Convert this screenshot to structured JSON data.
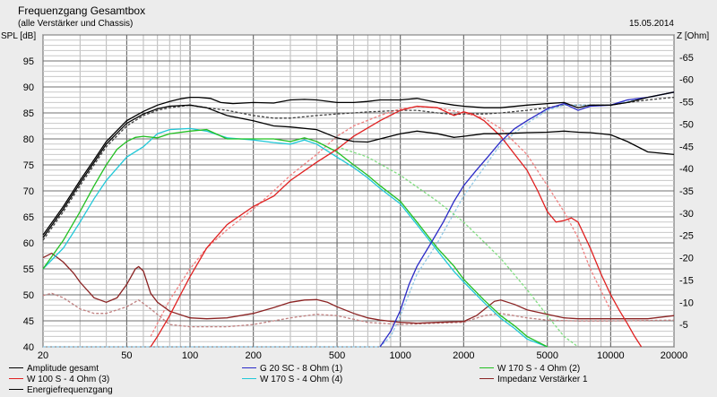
{
  "header": {
    "title": "Frequenzgang Gesamtbox",
    "subtitle": "(alle Verstärker und Chassis)",
    "date": "15.05.2014"
  },
  "chart_data": {
    "type": "line",
    "title": "Frequenzgang Gesamtbox",
    "subtitle": "(alle Verstärker und Chassis)",
    "xlabel": "",
    "ylabel": "SPL [dB]",
    "y2label": "Z [Ohm]",
    "xscale": "log",
    "xlim": [
      20,
      20000
    ],
    "ylim": [
      40,
      100
    ],
    "y2lim": [
      0,
      70
    ],
    "xticks": [
      20,
      50,
      100,
      200,
      500,
      1000,
      2000,
      5000,
      10000,
      20000
    ],
    "yticks": [
      40,
      45,
      50,
      55,
      60,
      65,
      70,
      75,
      80,
      85,
      90,
      95
    ],
    "y2ticks": [
      5,
      10,
      15,
      20,
      25,
      30,
      35,
      40,
      45,
      50,
      55,
      60,
      65
    ],
    "grid": true,
    "legend": "bottom",
    "colors": {
      "amp": "#000000",
      "g20": "#2a2ac8",
      "w170_2": "#22c022",
      "w100": "#e02020",
      "w170_4": "#20c8d8",
      "imp": "#8b2323",
      "energie": "#000000"
    },
    "series": [
      {
        "key": "amp",
        "name": "Amplitude gesamt",
        "axis": "left",
        "x": [
          20,
          25,
          30,
          35,
          40,
          50,
          60,
          70,
          80,
          90,
          100,
          110,
          125,
          140,
          160,
          200,
          250,
          300,
          350,
          400,
          500,
          600,
          700,
          800,
          1000,
          1200,
          1500,
          1800,
          2000,
          2500,
          3000,
          4000,
          5000,
          6000,
          7000,
          8000,
          10000,
          12000,
          15000,
          20000
        ],
        "y": [
          61.5,
          67,
          72,
          76,
          79.5,
          83.5,
          85.3,
          86.5,
          87.2,
          87.7,
          88,
          88,
          87.8,
          87,
          86.8,
          87,
          86.9,
          87.5,
          87.6,
          87.5,
          87,
          87,
          87.2,
          87.5,
          87.5,
          87.8,
          87,
          86.5,
          86.3,
          86,
          86,
          86.5,
          86.8,
          87,
          86,
          86.5,
          86.5,
          87,
          88,
          89
        ]
      },
      {
        "key": "amp_b",
        "name": "",
        "axis": "left",
        "x": [
          20,
          25,
          30,
          35,
          40,
          50,
          60,
          70,
          80,
          100,
          120,
          150,
          200,
          250,
          300,
          400,
          500,
          600,
          700,
          800,
          1000,
          1200,
          1500,
          1800,
          2000,
          2500,
          3000,
          4000,
          5000,
          6000,
          7000,
          8000,
          10000,
          12000,
          15000,
          20000
        ],
        "y": [
          61,
          66.5,
          71.5,
          75.5,
          79,
          83,
          84.8,
          85.8,
          86.3,
          86.5,
          86,
          84.5,
          83.5,
          82.5,
          82.3,
          81.8,
          80.2,
          79.5,
          79.4,
          80,
          81,
          81.5,
          81,
          80.3,
          80.5,
          81,
          81,
          81.2,
          81.3,
          81.5,
          81.3,
          81.2,
          80.8,
          79.5,
          77.5,
          77
        ]
      },
      {
        "key": "energie",
        "name": "Energiefrequenzgang",
        "axis": "left",
        "dash": "3,2",
        "x": [
          20,
          25,
          30,
          35,
          40,
          50,
          60,
          70,
          80,
          100,
          120,
          150,
          200,
          250,
          300,
          400,
          500,
          600,
          700,
          800,
          1000,
          1200,
          1500,
          1800,
          2000,
          2500,
          3000,
          4000,
          5000,
          6000,
          7000,
          8000,
          10000,
          12000,
          15000,
          20000
        ],
        "y": [
          60.5,
          66,
          71,
          75,
          78.5,
          82.5,
          84.5,
          85.5,
          86,
          86.5,
          86,
          85.5,
          84.5,
          84,
          84,
          84.5,
          84.8,
          85,
          85.2,
          85.3,
          85.5,
          85.5,
          85,
          84.7,
          84.8,
          84.8,
          85,
          85.5,
          86,
          86.5,
          86.5,
          86.5,
          86.5,
          87,
          87.5,
          88
        ]
      },
      {
        "key": "g20",
        "name": "G 20 SC - 8 Ohm (1)",
        "axis": "left",
        "x": [
          800,
          900,
          1000,
          1100,
          1200,
          1400,
          1600,
          1800,
          2000,
          2300,
          2600,
          3000,
          3500,
          4000,
          5000,
          6000,
          7000,
          8000,
          10000,
          12000,
          15000,
          20000
        ],
        "y": [
          40,
          43,
          47,
          52,
          55.5,
          60,
          64,
          68,
          71,
          74,
          76.5,
          79.5,
          82,
          83.5,
          85.8,
          86.8,
          85.5,
          86.3,
          86.5,
          87.5,
          88,
          89
        ]
      },
      {
        "key": "g20_dash",
        "name": "",
        "axis": "left",
        "dash": "3,2",
        "x": [
          20,
          800,
          900,
          1000,
          1200,
          1500,
          2000,
          3000,
          4000,
          5000,
          6000,
          8000,
          10000,
          20000
        ],
        "y": [
          40,
          40,
          42,
          46,
          54,
          60,
          69,
          79,
          83,
          85.5,
          86.5,
          86.5,
          86.5,
          89
        ]
      },
      {
        "key": "w100",
        "name": "W 100 S - 4 Ohm (3)",
        "axis": "left",
        "x": [
          65,
          70,
          80,
          90,
          100,
          120,
          150,
          200,
          250,
          300,
          400,
          500,
          600,
          800,
          1000,
          1200,
          1500,
          1800,
          2000,
          2200,
          2500,
          3000,
          3500,
          4000,
          4500,
          5000,
          5500,
          6000,
          6500,
          7000,
          8000,
          9000,
          10000,
          11000,
          12000,
          13000,
          14000
        ],
        "y": [
          40,
          42,
          46,
          50,
          53.5,
          59,
          63.5,
          67,
          69,
          72,
          75.5,
          78,
          80.5,
          83.5,
          85.5,
          86.3,
          86,
          84.5,
          85.2,
          84.8,
          83.5,
          80.5,
          77,
          74,
          70,
          66,
          64,
          64.3,
          64.8,
          64,
          59,
          54,
          50,
          47,
          44.5,
          42,
          40
        ]
      },
      {
        "key": "w100_dash",
        "name": "",
        "axis": "left",
        "dash": "3,2",
        "x": [
          65,
          80,
          100,
          120,
          150,
          200,
          250,
          300,
          400,
          500,
          600,
          800,
          1000,
          1200,
          1500,
          2000,
          2500,
          3000,
          4000,
          5000,
          6000,
          7000,
          8000,
          10000
        ],
        "y": [
          42,
          49,
          55,
          59,
          62.5,
          66.5,
          70,
          73,
          77,
          80.5,
          82.5,
          84.5,
          85.8,
          86.2,
          86,
          85,
          84,
          82,
          77,
          71,
          66,
          61,
          55,
          47
        ]
      },
      {
        "key": "w170_2",
        "name": "W 170 S - 4 Ohm (2)",
        "axis": "left",
        "x": [
          20,
          25,
          30,
          35,
          40,
          45,
          50,
          55,
          60,
          70,
          80,
          100,
          120,
          150,
          200,
          250,
          300,
          350,
          400,
          500,
          600,
          700,
          800,
          1000,
          1200,
          1500,
          1800,
          2000,
          2500,
          3000,
          3500,
          4000,
          5000
        ],
        "y": [
          55,
          60.5,
          66,
          71,
          75,
          78,
          79.5,
          80.3,
          80.5,
          80.2,
          81,
          81.5,
          81.8,
          80,
          80,
          80,
          79.5,
          80.2,
          79.5,
          77.5,
          75,
          73,
          71,
          68,
          64,
          59,
          55.5,
          53,
          49,
          46,
          44,
          42,
          40
        ]
      },
      {
        "key": "w170_4",
        "name": "W 170 S - 4 Ohm (4)",
        "axis": "left",
        "x": [
          20,
          25,
          30,
          35,
          40,
          50,
          60,
          70,
          80,
          100,
          120,
          150,
          200,
          250,
          300,
          350,
          400,
          500,
          600,
          700,
          800,
          1000,
          1200,
          1500,
          1800,
          2000,
          2500,
          3000,
          3500,
          4000,
          5000
        ],
        "y": [
          55,
          59,
          64,
          68.5,
          72,
          76.5,
          78.5,
          81,
          81.8,
          82,
          81.5,
          80.2,
          79.8,
          79.3,
          79,
          79.8,
          79,
          76.5,
          74.5,
          72.5,
          70.5,
          67.5,
          63.5,
          58.5,
          54.5,
          52.5,
          48.5,
          45.5,
          43.5,
          41.5,
          40
        ]
      },
      {
        "key": "w170_2_dash",
        "name": "",
        "axis": "left",
        "dash": "3,2",
        "x": [
          500,
          700,
          1000,
          1500,
          2000,
          3000,
          4000,
          5000,
          6000,
          7000
        ],
        "y": [
          78.5,
          76.5,
          73,
          68,
          64,
          57,
          51,
          46,
          42,
          40
        ]
      },
      {
        "key": "imp",
        "name": "Impedanz Verstärker 1",
        "axis": "right",
        "x": [
          20,
          22,
          25,
          28,
          30,
          35,
          40,
          45,
          50,
          55,
          57,
          60,
          65,
          70,
          80,
          100,
          120,
          150,
          200,
          250,
          300,
          350,
          400,
          450,
          500,
          600,
          700,
          800,
          1000,
          1200,
          1500,
          2000,
          2300,
          2600,
          2800,
          3000,
          3500,
          4000,
          5000,
          6000,
          7000,
          8000,
          10000,
          15000,
          20000
        ],
        "y": [
          20,
          21,
          19,
          16.5,
          14.5,
          11,
          10,
          11,
          14,
          17.5,
          18,
          17,
          12,
          10,
          8,
          6.5,
          6.3,
          6.5,
          7.5,
          8.8,
          10,
          10.5,
          10.6,
          10,
          9,
          7.5,
          6.5,
          6,
          5.5,
          5.3,
          5.5,
          5.7,
          7,
          9,
          10.2,
          10.5,
          9.5,
          8.3,
          7.3,
          6.5,
          6.3,
          6.3,
          6.3,
          6.3,
          7
        ]
      },
      {
        "key": "imp_dash",
        "name": "",
        "axis": "right",
        "dash": "3,2",
        "x": [
          20,
          22,
          25,
          30,
          35,
          40,
          50,
          57,
          65,
          80,
          100,
          150,
          200,
          300,
          400,
          500,
          700,
          1000,
          1500,
          2000,
          2500,
          3000,
          4000,
          5000,
          7000,
          10000,
          20000
        ],
        "y": [
          11.5,
          12,
          11,
          8.5,
          7.5,
          7.5,
          9,
          10.5,
          8.5,
          5,
          4.5,
          4.5,
          5,
          6.5,
          7.3,
          7,
          5.5,
          5,
          5.3,
          5.5,
          7,
          7.5,
          6.5,
          6,
          5.8,
          5.8,
          6
        ]
      }
    ]
  },
  "legend": {
    "items": [
      {
        "label": "Amplitude gesamt",
        "color": "#000000",
        "col": 0,
        "row": 0
      },
      {
        "label": "G 20 SC - 8 Ohm (1)",
        "color": "#2a2ac8",
        "col": 1,
        "row": 0
      },
      {
        "label": "W 170 S - 4 Ohm (2)",
        "color": "#22c022",
        "col": 2,
        "row": 0
      },
      {
        "label": "W 100 S - 4 Ohm (3)",
        "color": "#e02020",
        "col": 0,
        "row": 1
      },
      {
        "label": "W 170 S - 4 Ohm (4)",
        "color": "#20c8d8",
        "col": 1,
        "row": 1
      },
      {
        "label": "Impedanz Verstärker 1",
        "color": "#8b2323",
        "col": 2,
        "row": 1
      },
      {
        "label": "Energiefrequenzgang",
        "color": "#000000",
        "col": 0,
        "row": 2
      }
    ]
  }
}
